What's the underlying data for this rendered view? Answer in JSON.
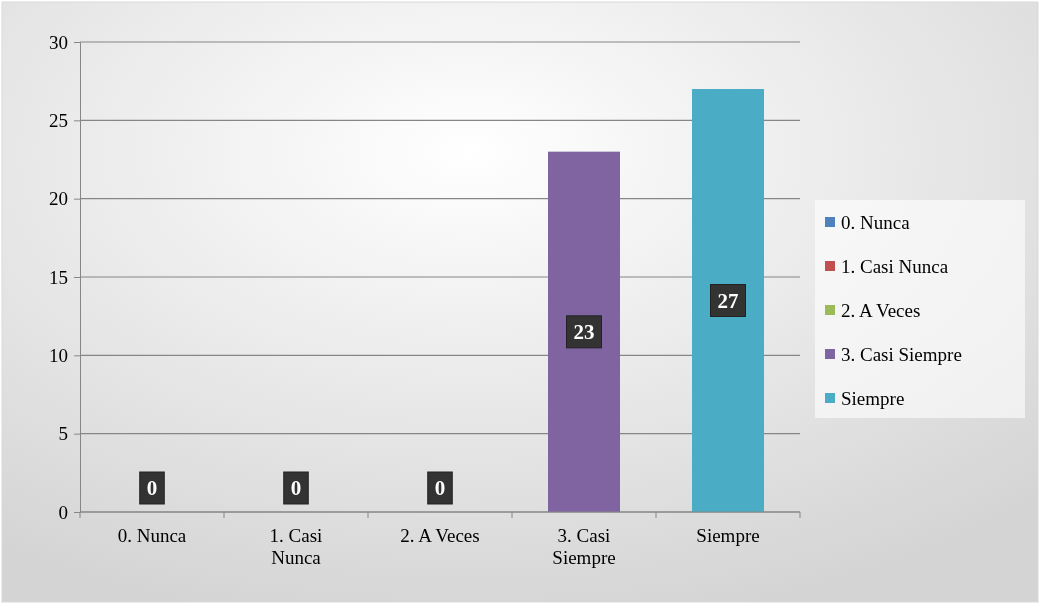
{
  "chart_data": {
    "type": "bar",
    "categories": [
      "0. Nunca",
      "1. Casi Nunca",
      "2. A Veces",
      "3. Casi Siempre",
      "Siempre"
    ],
    "series": [
      {
        "name": "0. Nunca",
        "color": "#4f81bd",
        "values": [
          0,
          null,
          null,
          null,
          null
        ]
      },
      {
        "name": "1. Casi Nunca",
        "color": "#c0504d",
        "values": [
          null,
          0,
          null,
          null,
          null
        ]
      },
      {
        "name": "2. A Veces",
        "color": "#9bbb59",
        "values": [
          null,
          null,
          0,
          null,
          null
        ]
      },
      {
        "name": "3. Casi Siempre",
        "color": "#8064a2",
        "values": [
          null,
          null,
          null,
          23,
          null
        ]
      },
      {
        "name": "Siempre",
        "color": "#4bacc6",
        "values": [
          null,
          null,
          null,
          null,
          27
        ]
      }
    ],
    "ylim": [
      0,
      30
    ],
    "yticks": [
      0,
      5,
      10,
      15,
      20,
      25,
      30
    ],
    "grid": "y",
    "legend": "right",
    "data_labels": true
  }
}
